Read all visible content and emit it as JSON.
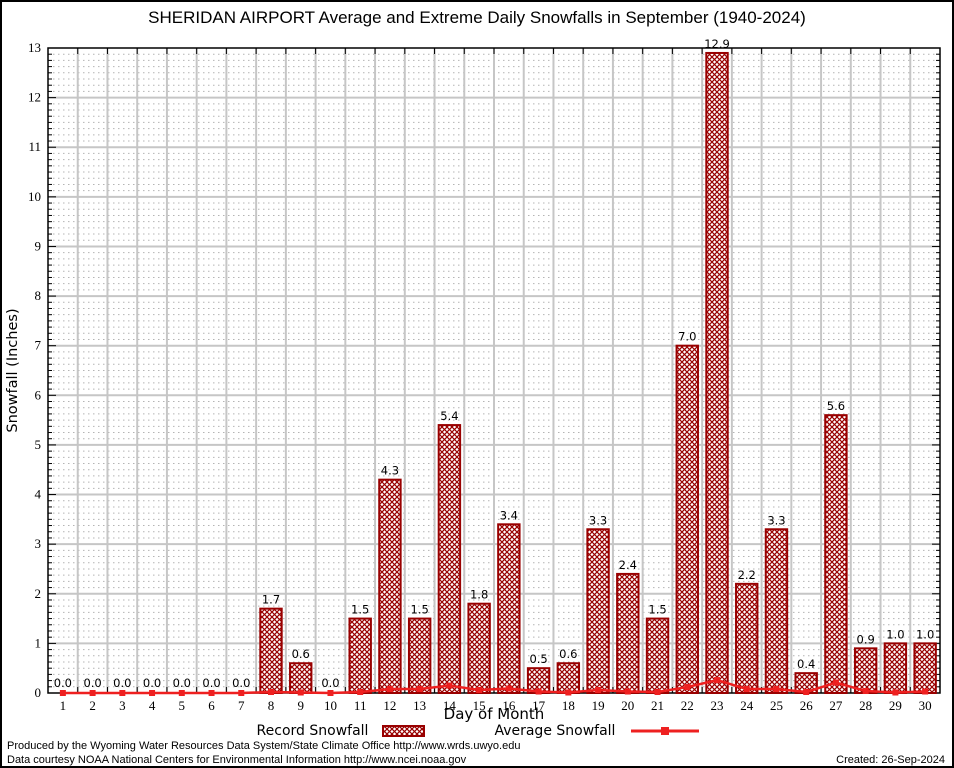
{
  "title": "SHERIDAN AIRPORT Average and Extreme Daily Snowfalls in September (1940-2024)",
  "chart_data": {
    "type": "bar",
    "title": "SHERIDAN AIRPORT Average and Extreme Daily Snowfalls in September (1940-2024)",
    "xlabel": "Day of Month",
    "ylabel": "Snowfall (Inches)",
    "ylim": [
      0,
      13
    ],
    "y_tick_step": 1,
    "y_minor_divisions": 8,
    "grid": true,
    "legend_position": "bottom",
    "categories": [
      1,
      2,
      3,
      4,
      5,
      6,
      7,
      8,
      9,
      10,
      11,
      12,
      13,
      14,
      15,
      16,
      17,
      18,
      19,
      20,
      21,
      22,
      23,
      24,
      25,
      26,
      27,
      28,
      29,
      30
    ],
    "series": [
      {
        "name": "Record Snowfall",
        "type": "bar",
        "color": "#990000",
        "values": [
          0.0,
          0.0,
          0.0,
          0.0,
          0.0,
          0.0,
          0.0,
          1.7,
          0.6,
          0.0,
          1.5,
          4.3,
          1.5,
          5.4,
          1.8,
          3.4,
          0.5,
          0.6,
          3.3,
          2.4,
          1.5,
          7.0,
          12.9,
          2.2,
          3.3,
          0.4,
          5.6,
          0.9,
          1.0,
          1.0
        ]
      },
      {
        "name": "Average Snowfall",
        "type": "line",
        "color": "#ee2020",
        "values": [
          0.0,
          0.0,
          0.0,
          0.0,
          0.0,
          0.0,
          0.0,
          0.02,
          0.01,
          0.0,
          0.02,
          0.08,
          0.08,
          0.15,
          0.06,
          0.09,
          0.03,
          0.01,
          0.06,
          0.03,
          0.02,
          0.12,
          0.26,
          0.08,
          0.08,
          0.02,
          0.21,
          0.04,
          0.01,
          0.03
        ]
      }
    ],
    "colors": {
      "bar_hatch": "#990000",
      "line_red": "#ee2020",
      "grid_major": "#c6c6c6",
      "grid_minor": "#b4b4b4",
      "axis": "#000000"
    }
  },
  "footer": {
    "line1": "Produced by the Wyoming Water Resources Data System/State Climate Office http://www.wrds.uwyo.edu",
    "line2": "Data courtesy NOAA National Centers for Environmental Information http://www.ncei.noaa.gov",
    "created": "Created: 26-Sep-2024"
  }
}
